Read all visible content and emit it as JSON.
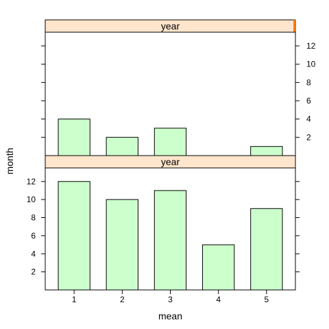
{
  "chart_data": {
    "type": "bar",
    "xlabel": "mean",
    "ylabel": "month",
    "x_ticks": [
      "1",
      "2",
      "3",
      "4",
      "5"
    ],
    "y_ticks": [
      "2",
      "4",
      "6",
      "8",
      "10",
      "12"
    ],
    "ylim": [
      0,
      13.5
    ],
    "grid": false,
    "bar_fill": "#ccffcc",
    "strip_fill": "#ffe5cc",
    "strip_marker": "#ff8000",
    "panels": [
      {
        "strip": "year",
        "categories": [
          1,
          2,
          3,
          4,
          5
        ],
        "values": [
          4,
          2,
          3,
          0,
          1
        ]
      },
      {
        "strip": "year",
        "categories": [
          1,
          2,
          3,
          4,
          5
        ],
        "values": [
          12,
          10,
          11,
          5,
          9
        ]
      }
    ]
  }
}
